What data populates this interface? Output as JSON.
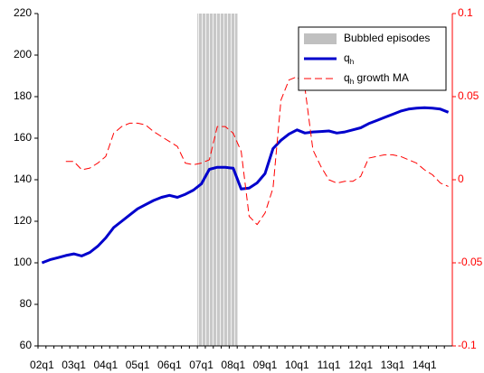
{
  "chart_data": {
    "type": "line",
    "categories": [
      "02q1",
      null,
      null,
      null,
      "03q1",
      null,
      null,
      null,
      "04q1",
      null,
      null,
      null,
      "05q1",
      null,
      null,
      null,
      "06q1",
      null,
      null,
      null,
      "07q1",
      null,
      null,
      null,
      "08q1",
      null,
      null,
      null,
      "09q1",
      null,
      null,
      null,
      "10q1",
      null,
      null,
      null,
      "11q1",
      null,
      null,
      null,
      "12q1",
      null,
      null,
      null,
      "13q1",
      null,
      null,
      null,
      "14q1",
      null,
      null,
      null
    ],
    "ylim": [
      60,
      220
    ],
    "yticks": [
      60,
      80,
      100,
      120,
      140,
      160,
      180,
      200,
      220
    ],
    "y2lim": [
      -0.1,
      0.1
    ],
    "y2ticks": [
      -0.1,
      -0.05,
      0,
      0.05,
      0.1
    ],
    "y2_color": "#ff0000",
    "legend": "top-right",
    "series": [
      {
        "name": "Bubbled episodes",
        "type": "bar",
        "color": "#c0c0c0",
        "values": [
          null,
          null,
          null,
          null,
          null,
          null,
          null,
          null,
          null,
          null,
          null,
          null,
          null,
          null,
          null,
          null,
          null,
          null,
          null,
          null,
          220,
          220,
          220,
          220,
          220,
          null,
          null,
          null,
          null,
          null,
          null,
          null,
          null,
          null,
          null,
          null,
          null,
          null,
          null,
          null,
          null,
          null,
          null,
          null,
          null,
          null,
          null,
          null,
          null,
          null,
          null,
          null
        ]
      },
      {
        "name": "qh",
        "type": "line",
        "color": "#0000cc",
        "values": [
          100,
          101.5,
          102.5,
          103.5,
          104.3,
          103.3,
          105,
          108,
          112,
          117,
          120,
          123,
          126,
          128,
          130,
          131.5,
          132.5,
          131.5,
          133,
          135,
          138,
          145,
          146,
          146,
          145.5,
          135.5,
          136,
          138.5,
          143,
          155,
          159,
          162,
          164,
          162.5,
          163,
          163.2,
          163.5,
          162.5,
          163,
          164,
          165,
          167,
          168.5,
          170,
          171.5,
          173,
          174,
          174.5,
          174.7,
          174.5,
          174,
          172.5
        ]
      },
      {
        "name": "qh growth MA",
        "type": "line",
        "axis": "y2",
        "dashed": true,
        "color": "#ff0000",
        "values": [
          null,
          null,
          null,
          0.011,
          0.011,
          0.006,
          0.007,
          0.01,
          0.014,
          0.028,
          0.032,
          0.034,
          0.034,
          0.033,
          0.029,
          0.026,
          0.023,
          0.02,
          0.01,
          0.009,
          0.01,
          0.012,
          0.032,
          0.032,
          0.028,
          0.017,
          -0.022,
          -0.027,
          -0.02,
          -0.005,
          0.048,
          0.06,
          0.062,
          0.055,
          0.018,
          0.008,
          0,
          -0.002,
          -0.001,
          -0.001,
          0.002,
          0.013,
          0.014,
          0.015,
          0.015,
          0.014,
          0.012,
          0.01,
          0.006,
          0.003,
          -0.002,
          -0.004
        ]
      }
    ]
  }
}
